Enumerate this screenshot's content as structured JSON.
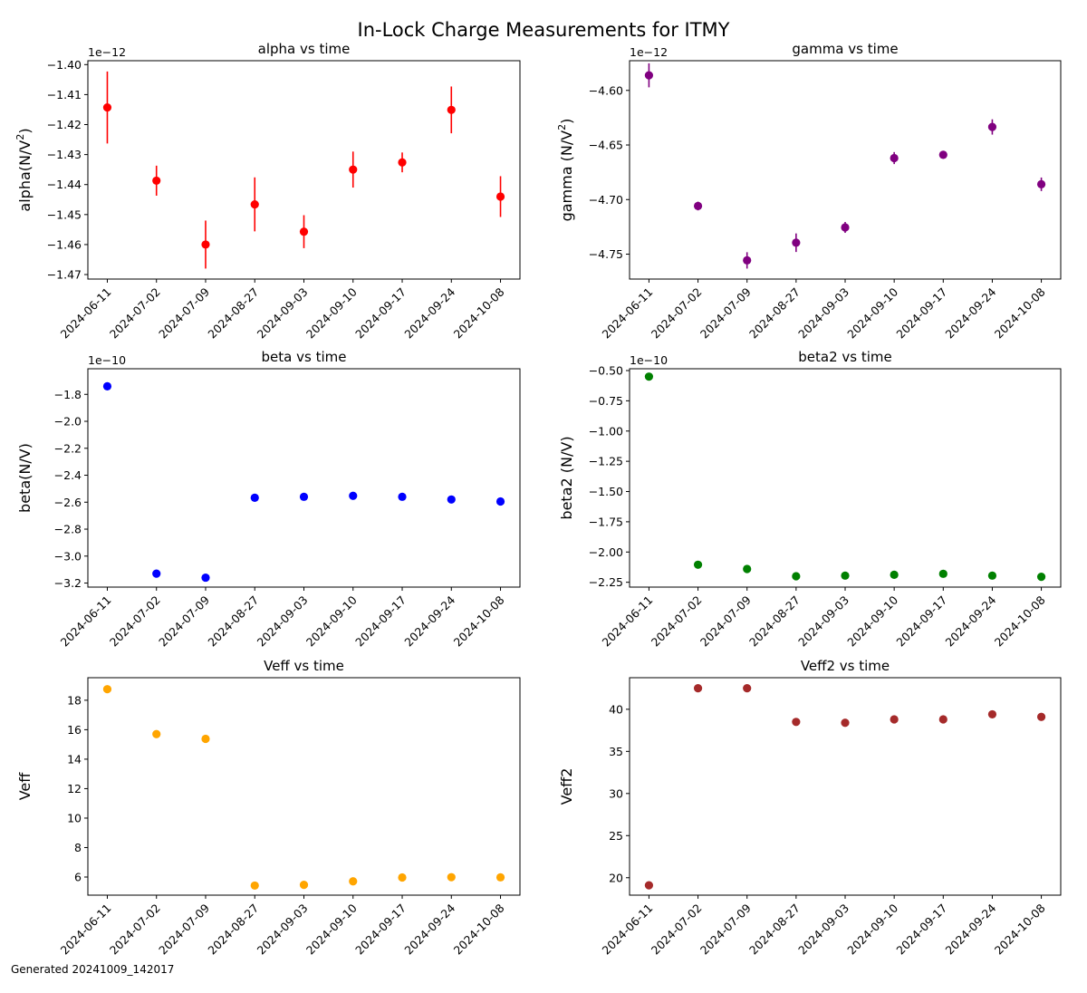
{
  "figure": {
    "title": "In-Lock Charge Measurements for ITMY",
    "footer": "Generated 20241009_142017"
  },
  "chart_data": [
    {
      "type": "scatter",
      "title": "alpha vs time",
      "ylabel": "alpha(N/V²)",
      "ylabel_main": "alpha(N/V",
      "ylabel_sup": "2",
      "ylabel_tail": ")",
      "offset_text": "1e−12",
      "scale": 1e-12,
      "color": "#ff0000",
      "x": [
        "2024-06-11",
        "2024-07-02",
        "2024-07-09",
        "2024-08-27",
        "2024-09-03",
        "2024-09-10",
        "2024-09-17",
        "2024-09-24",
        "2024-10-08"
      ],
      "values": [
        -1.4143,
        -1.4387,
        -1.46,
        -1.4466,
        -1.4557,
        -1.435,
        -1.4326,
        -1.4151,
        -1.444
      ],
      "errors": [
        0.012,
        0.005,
        0.008,
        0.009,
        0.0055,
        0.006,
        0.0033,
        0.0078,
        0.0068
      ],
      "ylim": [
        -1.4715,
        -1.3987
      ],
      "yticks": [
        -1.47,
        -1.46,
        -1.45,
        -1.44,
        -1.43,
        -1.42,
        -1.41,
        -1.4
      ],
      "ytick_labels": [
        "−1.47",
        "−1.46",
        "−1.45",
        "−1.44",
        "−1.43",
        "−1.42",
        "−1.41",
        "−1.40"
      ]
    },
    {
      "type": "scatter",
      "title": "gamma vs time",
      "ylabel": "gamma (N/V²)",
      "ylabel_main": "gamma (N/V",
      "ylabel_sup": "2",
      "ylabel_tail": ")",
      "offset_text": "1e−12",
      "scale": 1e-12,
      "color": "#800080",
      "x": [
        "2024-06-11",
        "2024-07-02",
        "2024-07-09",
        "2024-08-27",
        "2024-09-03",
        "2024-09-10",
        "2024-09-17",
        "2024-09-24",
        "2024-10-08"
      ],
      "values": [
        -4.5862,
        -4.7059,
        -4.7557,
        -4.7395,
        -4.7255,
        -4.662,
        -4.659,
        -4.6335,
        -4.686
      ],
      "errors": [
        0.011,
        0.004,
        0.0075,
        0.0085,
        0.005,
        0.0055,
        0.0025,
        0.007,
        0.0062
      ],
      "ylim": [
        -4.7728,
        -4.5728
      ],
      "yticks": [
        -4.75,
        -4.7,
        -4.65,
        -4.6
      ],
      "ytick_labels": [
        "−4.75",
        "−4.70",
        "−4.65",
        "−4.60"
      ]
    },
    {
      "type": "scatter",
      "title": "beta vs time",
      "ylabel": "beta(N/V)",
      "offset_text": "1e−10",
      "scale": 1e-10,
      "color": "#0000ff",
      "x": [
        "2024-06-11",
        "2024-07-02",
        "2024-07-09",
        "2024-08-27",
        "2024-09-03",
        "2024-09-10",
        "2024-09-17",
        "2024-09-24",
        "2024-10-08"
      ],
      "values": [
        -1.74,
        -3.13,
        -3.16,
        -2.567,
        -2.56,
        -2.553,
        -2.56,
        -2.58,
        -2.595
      ],
      "ylim": [
        -3.23,
        -1.61
      ],
      "yticks": [
        -3.2,
        -3.0,
        -2.8,
        -2.6,
        -2.4,
        -2.2,
        -2.0,
        -1.8
      ],
      "ytick_labels": [
        "−3.2",
        "−3.0",
        "−2.8",
        "−2.6",
        "−2.4",
        "−2.2",
        "−2.0",
        "−1.8"
      ]
    },
    {
      "type": "scatter",
      "title": "beta2 vs time",
      "ylabel": "beta2 (N/V)",
      "offset_text": "1e−10",
      "scale": 1e-10,
      "color": "#008000",
      "x": [
        "2024-06-11",
        "2024-07-02",
        "2024-07-09",
        "2024-08-27",
        "2024-09-03",
        "2024-09-10",
        "2024-09-17",
        "2024-09-24",
        "2024-10-08"
      ],
      "values": [
        -0.55,
        -2.105,
        -2.14,
        -2.2,
        -2.195,
        -2.188,
        -2.18,
        -2.195,
        -2.205
      ],
      "ylim": [
        -2.29,
        -0.485
      ],
      "yticks": [
        -2.25,
        -2.0,
        -1.75,
        -1.5,
        -1.25,
        -1.0,
        -0.75,
        -0.5
      ],
      "ytick_labels": [
        "−2.25",
        "−2.00",
        "−1.75",
        "−1.50",
        "−1.25",
        "−1.00",
        "−0.75",
        "−0.50"
      ]
    },
    {
      "type": "scatter",
      "title": "Veff vs time",
      "ylabel": "Veff",
      "offset_text": "",
      "color": "#ffa500",
      "x": [
        "2024-06-11",
        "2024-07-02",
        "2024-07-09",
        "2024-08-27",
        "2024-09-03",
        "2024-09-10",
        "2024-09-17",
        "2024-09-24",
        "2024-10-08"
      ],
      "values": [
        18.75,
        15.7,
        15.38,
        5.42,
        5.47,
        5.71,
        5.97,
        5.99,
        5.98
      ],
      "ylim": [
        4.77,
        19.53
      ],
      "yticks": [
        6,
        8,
        10,
        12,
        14,
        16,
        18
      ],
      "ytick_labels": [
        "6",
        "8",
        "10",
        "12",
        "14",
        "16",
        "18"
      ]
    },
    {
      "type": "scatter",
      "title": "Veff2 vs time",
      "ylabel": "Veff2",
      "offset_text": "",
      "color": "#a52a2a",
      "x": [
        "2024-06-11",
        "2024-07-02",
        "2024-07-09",
        "2024-08-27",
        "2024-09-03",
        "2024-09-10",
        "2024-09-17",
        "2024-09-24",
        "2024-10-08"
      ],
      "values": [
        19.1,
        42.5,
        42.5,
        38.5,
        38.4,
        38.8,
        38.8,
        39.4,
        39.1
      ],
      "ylim": [
        17.93,
        43.75
      ],
      "yticks": [
        20,
        25,
        30,
        35,
        40
      ],
      "ytick_labels": [
        "20",
        "25",
        "30",
        "35",
        "40"
      ]
    }
  ]
}
